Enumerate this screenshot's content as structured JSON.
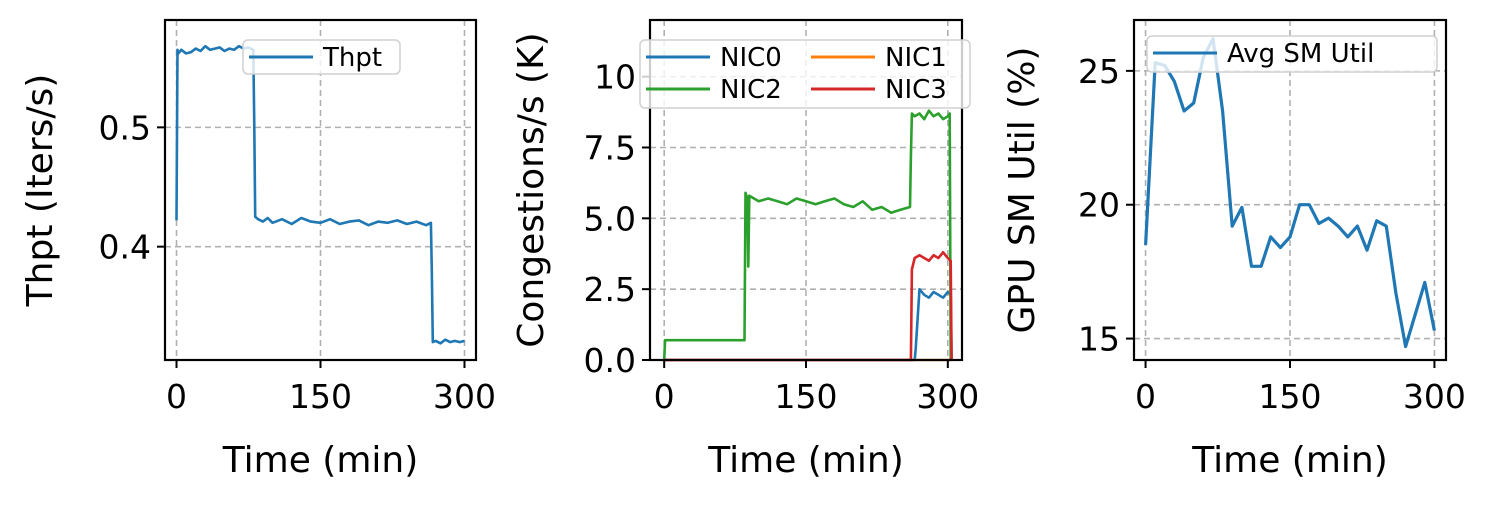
{
  "chart_data": [
    {
      "type": "line",
      "xlabel": "Time (min)",
      "ylabel": "Thpt (Iters/s)",
      "xlim": [
        -12,
        312
      ],
      "ylim": [
        0.305,
        0.59
      ],
      "xticks": [
        0,
        150,
        300
      ],
      "xtick_labels": [
        "0",
        "150",
        "300"
      ],
      "yticks": [
        0.4,
        0.5
      ],
      "ytick_labels": [
        "0.4",
        "0.5"
      ],
      "grid": true,
      "legend_position": "top-right",
      "series": [
        {
          "name": "Thpt",
          "color": "#1f77b4",
          "x": [
            0,
            1,
            2,
            5,
            10,
            15,
            20,
            25,
            30,
            35,
            40,
            45,
            50,
            55,
            60,
            65,
            70,
            75,
            80,
            81,
            82,
            85,
            90,
            95,
            100,
            110,
            120,
            130,
            140,
            150,
            160,
            170,
            180,
            190,
            200,
            210,
            220,
            230,
            240,
            250,
            260,
            265,
            266,
            267,
            270,
            275,
            280,
            285,
            290,
            295,
            300
          ],
          "y": [
            0.422,
            0.565,
            0.562,
            0.565,
            0.562,
            0.563,
            0.566,
            0.564,
            0.568,
            0.565,
            0.566,
            0.567,
            0.564,
            0.566,
            0.565,
            0.568,
            0.566,
            0.567,
            0.565,
            0.5,
            0.425,
            0.423,
            0.421,
            0.424,
            0.42,
            0.423,
            0.419,
            0.424,
            0.421,
            0.42,
            0.423,
            0.419,
            0.421,
            0.422,
            0.418,
            0.421,
            0.42,
            0.422,
            0.419,
            0.421,
            0.418,
            0.42,
            0.38,
            0.32,
            0.321,
            0.319,
            0.322,
            0.32,
            0.321,
            0.32,
            0.321
          ]
        }
      ]
    },
    {
      "type": "line",
      "xlabel": "Time (min)",
      "ylabel": "Congestions/s (K)",
      "xlim": [
        -15,
        315
      ],
      "ylim": [
        0,
        12
      ],
      "xticks": [
        0,
        150,
        300
      ],
      "xtick_labels": [
        "0",
        "150",
        "300"
      ],
      "yticks": [
        0,
        2.5,
        5,
        7.5,
        10
      ],
      "ytick_labels": [
        "0.0",
        "2.5",
        "5.0",
        "7.5",
        "10"
      ],
      "grid": true,
      "legend_position": "top",
      "series": [
        {
          "name": "NIC0",
          "color": "#1f77b4",
          "x": [
            0,
            265,
            266,
            270,
            275,
            280,
            285,
            290,
            295,
            300,
            303,
            304
          ],
          "y": [
            0,
            0,
            0.4,
            2.5,
            2.3,
            2.2,
            2.4,
            2.3,
            2.2,
            2.4,
            2.3,
            0
          ]
        },
        {
          "name": "NIC1",
          "color": "#ff7f0e",
          "x": [
            0,
            304
          ],
          "y": [
            0,
            0
          ]
        },
        {
          "name": "NIC2",
          "color": "#2ca02c",
          "x": [
            0,
            1,
            2,
            85,
            86,
            88,
            89,
            90,
            95,
            100,
            110,
            120,
            130,
            140,
            150,
            160,
            170,
            180,
            190,
            200,
            210,
            220,
            230,
            240,
            250,
            260,
            261,
            262,
            265,
            270,
            275,
            280,
            285,
            290,
            295,
            300,
            302,
            303
          ],
          "y": [
            0,
            0.7,
            0.7,
            0.7,
            5.9,
            5.7,
            3.3,
            5.8,
            5.7,
            5.6,
            5.7,
            5.6,
            5.5,
            5.7,
            5.6,
            5.5,
            5.6,
            5.7,
            5.5,
            5.4,
            5.6,
            5.3,
            5.4,
            5.2,
            5.3,
            5.4,
            7.2,
            8.7,
            8.6,
            8.7,
            8.5,
            8.8,
            8.6,
            8.7,
            8.5,
            8.6,
            8.7,
            0
          ]
        },
        {
          "name": "NIC3",
          "color": "#d62728",
          "x": [
            0,
            261,
            262,
            265,
            270,
            275,
            280,
            285,
            290,
            295,
            300,
            303,
            304
          ],
          "y": [
            0,
            0,
            3.2,
            3.6,
            3.7,
            3.6,
            3.5,
            3.7,
            3.6,
            3.8,
            3.6,
            3.5,
            0
          ]
        }
      ]
    },
    {
      "type": "line",
      "xlabel": "Time (min)",
      "ylabel": "GPU SM Util (%)",
      "xlim": [
        -12,
        312
      ],
      "ylim": [
        14.2,
        26.9
      ],
      "xticks": [
        0,
        150,
        300
      ],
      "xtick_labels": [
        "0",
        "150",
        "300"
      ],
      "yticks": [
        15,
        20,
        25
      ],
      "ytick_labels": [
        "15",
        "20",
        "25"
      ],
      "grid": true,
      "legend_position": "top-right",
      "series": [
        {
          "name": "Avg SM Util",
          "color": "#1f77b4",
          "x": [
            0,
            10,
            20,
            30,
            40,
            50,
            60,
            70,
            80,
            90,
            100,
            110,
            120,
            130,
            140,
            150,
            160,
            170,
            180,
            190,
            200,
            210,
            220,
            230,
            240,
            250,
            260,
            270,
            280,
            290,
            300
          ],
          "y": [
            18.5,
            25.3,
            25.2,
            24.6,
            23.5,
            23.8,
            25.5,
            26.2,
            23.5,
            19.2,
            19.9,
            17.7,
            17.7,
            18.8,
            18.4,
            18.8,
            20.0,
            20.0,
            19.3,
            19.5,
            19.2,
            18.8,
            19.2,
            18.3,
            19.4,
            19.2,
            16.7,
            14.7,
            15.9,
            17.1,
            15.3
          ]
        }
      ]
    }
  ]
}
